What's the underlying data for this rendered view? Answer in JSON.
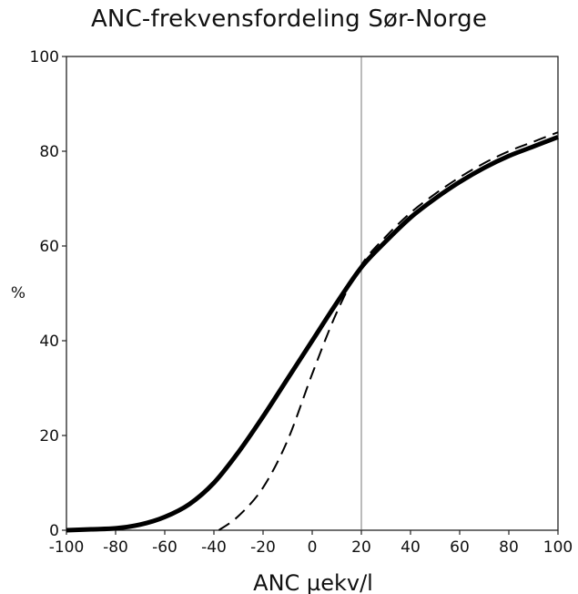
{
  "chart_data": {
    "type": "line",
    "title": "ANC-frekvensfordeling Sør-Norge",
    "xlabel": "ANC µekv/l",
    "ylabel": "%",
    "xlim": [
      -100,
      100
    ],
    "ylim": [
      0,
      100
    ],
    "x_ticks": [
      -100,
      -80,
      -60,
      -40,
      -20,
      0,
      20,
      40,
      60,
      80,
      100
    ],
    "y_ticks": [
      0,
      20,
      40,
      60,
      80,
      100
    ],
    "grid": false,
    "reference_line_x": 20,
    "series": [
      {
        "style": "solid",
        "color": "#000000",
        "points": [
          [
            -100,
            0
          ],
          [
            -90,
            0.2
          ],
          [
            -80,
            0.4
          ],
          [
            -70,
            1.2
          ],
          [
            -60,
            2.8
          ],
          [
            -50,
            5.5
          ],
          [
            -40,
            10
          ],
          [
            -30,
            16.5
          ],
          [
            -20,
            24
          ],
          [
            -10,
            32
          ],
          [
            0,
            40
          ],
          [
            10,
            48
          ],
          [
            20,
            55.5
          ],
          [
            30,
            61
          ],
          [
            40,
            66
          ],
          [
            50,
            70
          ],
          [
            60,
            73.5
          ],
          [
            70,
            76.5
          ],
          [
            80,
            79
          ],
          [
            90,
            81
          ],
          [
            100,
            83
          ]
        ]
      },
      {
        "style": "dashed",
        "color": "#000000",
        "points": [
          [
            -38,
            0
          ],
          [
            -30,
            3
          ],
          [
            -20,
            9
          ],
          [
            -10,
            19
          ],
          [
            0,
            33
          ],
          [
            10,
            46
          ],
          [
            20,
            56
          ],
          [
            30,
            62
          ],
          [
            40,
            67
          ],
          [
            50,
            71
          ],
          [
            60,
            74.5
          ],
          [
            70,
            77.5
          ],
          [
            80,
            80
          ],
          [
            90,
            82
          ],
          [
            100,
            84
          ]
        ]
      }
    ]
  }
}
